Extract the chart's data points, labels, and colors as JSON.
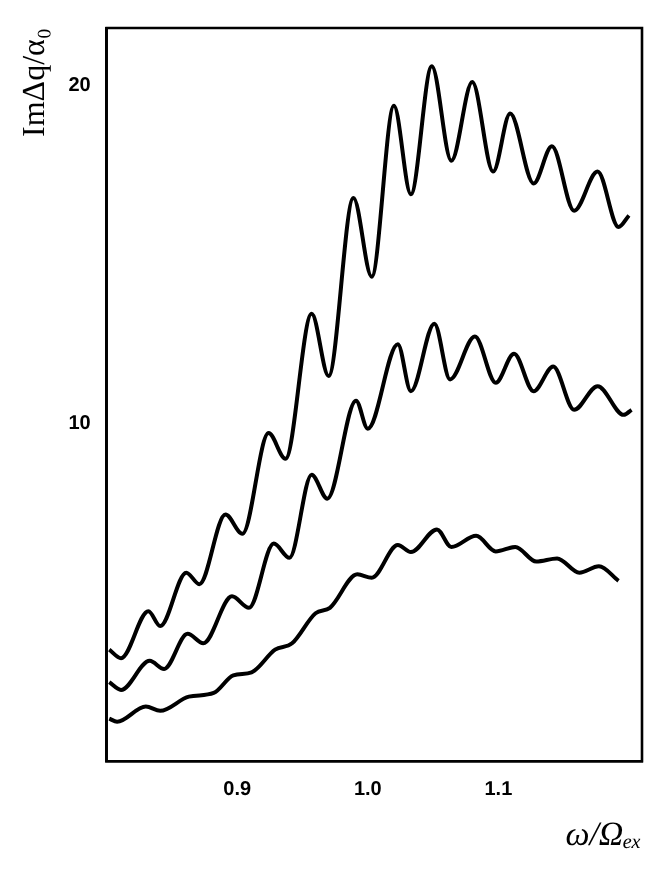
{
  "chart_data": {
    "type": "line",
    "xlabel": "ω/Ωₑₓ",
    "ylabel": "ImΔq/α₀",
    "xlim": [
      0.8,
      1.21
    ],
    "ylim": [
      0,
      21.7
    ],
    "xticks": [
      0.9,
      {
        "value": 1,
        "label": "1.0"
      },
      1.1
    ],
    "yticks": [
      10,
      20
    ],
    "series": [
      {
        "color": "#000000",
        "x": [
          0.802,
          0.811,
          0.832,
          0.841,
          0.861,
          0.871,
          0.891,
          0.904,
          0.924,
          0.937,
          0.957,
          0.97,
          0.989,
          1.003,
          1.02,
          1.033,
          1.049,
          1.064,
          1.08,
          1.096,
          1.109,
          1.127,
          1.141,
          1.158,
          1.176,
          1.192,
          1.2
        ],
        "values": [
          3.3,
          3.05,
          4.44,
          4.0,
          5.58,
          5.24,
          7.3,
          6.73,
          9.71,
          8.95,
          13.24,
          11.4,
          16.67,
          14.34,
          19.4,
          16.78,
          20.57,
          17.77,
          20.1,
          17.45,
          19.17,
          17.1,
          18.2,
          16.29,
          17.45,
          15.81,
          16.15
        ]
      },
      {
        "color": "#000000",
        "x": [
          0.802,
          0.811,
          0.833,
          0.844,
          0.862,
          0.874,
          0.896,
          0.909,
          0.928,
          0.94,
          0.957,
          0.969,
          0.991,
          1.0,
          1.023,
          1.033,
          1.051,
          1.063,
          1.082,
          1.098,
          1.112,
          1.127,
          1.142,
          1.158,
          1.176,
          1.196,
          1.202
        ],
        "values": [
          2.34,
          2.11,
          2.97,
          2.73,
          3.77,
          3.49,
          4.88,
          4.54,
          6.44,
          6.02,
          8.48,
          7.77,
          10.67,
          9.84,
          12.34,
          10.95,
          12.95,
          11.3,
          12.57,
          11.2,
          12.06,
          10.95,
          11.68,
          10.4,
          11.1,
          10.25,
          10.4
        ]
      },
      {
        "color": "#000000",
        "x": [
          0.802,
          0.808,
          0.83,
          0.841,
          0.863,
          0.882,
          0.897,
          0.911,
          0.929,
          0.942,
          0.96,
          0.971,
          0.992,
          1.003,
          1.023,
          1.033,
          1.053,
          1.064,
          1.083,
          1.098,
          1.113,
          1.129,
          1.145,
          1.162,
          1.177,
          1.192
        ],
        "values": [
          1.26,
          1.17,
          1.62,
          1.49,
          1.91,
          2.02,
          2.54,
          2.63,
          3.3,
          3.49,
          4.38,
          4.54,
          5.53,
          5.43,
          6.4,
          6.19,
          6.86,
          6.34,
          6.67,
          6.21,
          6.34,
          5.91,
          6.0,
          5.58,
          5.77,
          5.34
        ]
      }
    ]
  }
}
